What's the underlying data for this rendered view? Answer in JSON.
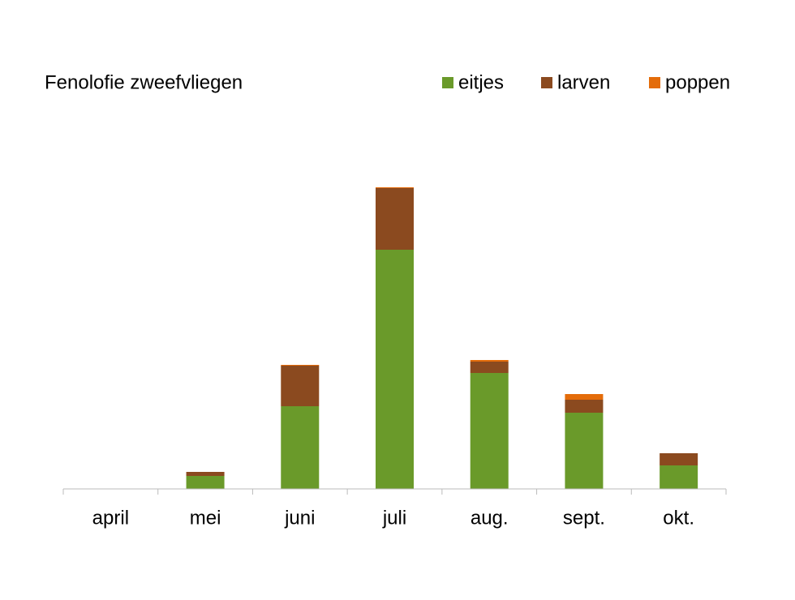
{
  "chart_data": {
    "type": "stacked_bar",
    "title": "Fenolofie zweefvliegen",
    "categories": [
      "april",
      "mei",
      "juni",
      "juli",
      "aug.",
      "sept.",
      "okt."
    ],
    "series": [
      {
        "name": "eitjes",
        "color": "#6a9a2a",
        "values": [
          0,
          16,
          102,
          295,
          143,
          94,
          29
        ]
      },
      {
        "name": "larven",
        "color": "#8b4a1f",
        "values": [
          0,
          5,
          50,
          76,
          14,
          16,
          15
        ]
      },
      {
        "name": "poppen",
        "color": "#e46c0a",
        "values": [
          0,
          0,
          1,
          1,
          2,
          7,
          0
        ]
      }
    ],
    "ylim": [
      0,
      400
    ],
    "legend": "top-right"
  }
}
